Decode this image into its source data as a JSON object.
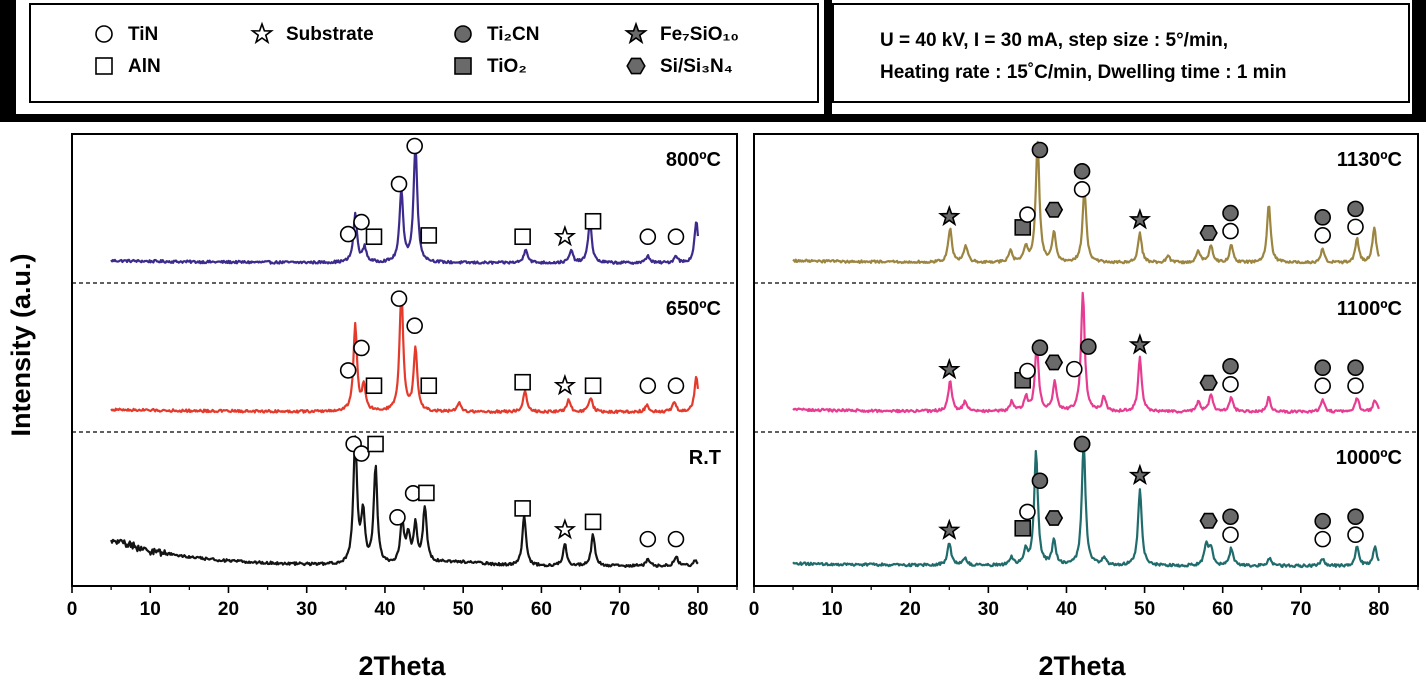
{
  "legend": {
    "items": [
      {
        "marker": "circle-open",
        "label": "TiN",
        "sub": ""
      },
      {
        "marker": "square-open",
        "label": "AlN",
        "sub": ""
      },
      {
        "marker": "star-open",
        "label": "Substrate",
        "sub": ""
      },
      {
        "marker": "circle-filled",
        "label": "Ti₂CN",
        "sub": ""
      },
      {
        "marker": "square-filled",
        "label": "TiO₂",
        "sub": ""
      },
      {
        "marker": "star-filled",
        "label": "Fe₇SiO₁₀",
        "sub": ""
      },
      {
        "marker": "hexagon-filled",
        "label": "Si/Si₃N₄",
        "sub": ""
      }
    ]
  },
  "conditions": {
    "line1": "U = 40 kV, I = 30 mA, step size : 5°/min,",
    "line2": "Heating rate : 15˚C/min, Dwelling time : 1 min"
  },
  "colors": {
    "800": "#3d2a8c",
    "650": "#e33a2c",
    "RT": "#141414",
    "1130": "#9c8540",
    "1100": "#e63d93",
    "1000": "#206c6c",
    "marker_fill": "#6a6a6a"
  },
  "chart_data": [
    {
      "type": "line",
      "panel": "left",
      "xlabel": "2Theta",
      "ylabel": "Intensity (a.u.)",
      "xlim": [
        0,
        85
      ],
      "xticks": [
        "0",
        "10",
        "20",
        "30",
        "40",
        "50",
        "60",
        "70",
        "80"
      ],
      "series": [
        {
          "name": "800ºC",
          "color_key": "800",
          "peaks": [
            [
              36.2,
              0.4
            ],
            [
              37.4,
              0.12
            ],
            [
              42.1,
              0.6
            ],
            [
              43.9,
              1.0
            ],
            [
              58.0,
              0.12
            ],
            [
              63.8,
              0.1
            ],
            [
              66.2,
              0.35
            ],
            [
              73.6,
              0.06
            ],
            [
              77.2,
              0.06
            ],
            [
              79.8,
              0.35
            ]
          ],
          "markers": [
            [
              "circle-open",
              35.3
            ],
            [
              "circle-open",
              37.0
            ],
            [
              "square-open",
              38.6
            ],
            [
              "circle-open",
              41.8
            ],
            [
              "circle-open",
              43.8
            ],
            [
              "square-open",
              45.6
            ],
            [
              "square-open",
              57.6
            ],
            [
              "star-open",
              63.0
            ],
            [
              "square-open",
              66.6
            ],
            [
              "circle-open",
              73.6
            ],
            [
              "circle-open",
              77.2
            ]
          ]
        },
        {
          "name": "650ºC",
          "color_key": "650",
          "peaks": [
            [
              36.2,
              0.72
            ],
            [
              37.3,
              0.2
            ],
            [
              42.1,
              1.0
            ],
            [
              43.9,
              0.52
            ],
            [
              49.5,
              0.07
            ],
            [
              57.9,
              0.18
            ],
            [
              63.5,
              0.1
            ],
            [
              66.3,
              0.12
            ],
            [
              73.5,
              0.06
            ],
            [
              77.0,
              0.08
            ],
            [
              79.8,
              0.3
            ]
          ],
          "markers": [
            [
              "circle-open",
              35.3
            ],
            [
              "circle-open",
              37.0
            ],
            [
              "square-open",
              38.6
            ],
            [
              "circle-open",
              41.8
            ],
            [
              "circle-open",
              43.8
            ],
            [
              "square-open",
              45.6
            ],
            [
              "square-open",
              57.6
            ],
            [
              "star-open",
              63.0
            ],
            [
              "square-open",
              66.6
            ],
            [
              "circle-open",
              73.6
            ],
            [
              "circle-open",
              77.2
            ]
          ]
        },
        {
          "name": "R.T",
          "color_key": "RT",
          "peaks": [
            [
              36.2,
              1.0
            ],
            [
              37.2,
              0.4
            ],
            [
              38.8,
              0.78
            ],
            [
              42.2,
              0.35
            ],
            [
              43.0,
              0.22
            ],
            [
              43.9,
              0.3
            ],
            [
              45.1,
              0.45
            ],
            [
              57.8,
              0.4
            ],
            [
              63.0,
              0.18
            ],
            [
              66.6,
              0.25
            ],
            [
              73.6,
              0.05
            ],
            [
              77.2,
              0.08
            ],
            [
              79.7,
              0.05
            ]
          ],
          "markers": [
            [
              "circle-open",
              36.0
            ],
            [
              "circle-open",
              37.0
            ],
            [
              "square-open",
              38.8
            ],
            [
              "circle-open",
              41.6
            ],
            [
              "circle-open",
              43.6
            ],
            [
              "square-open",
              45.3
            ],
            [
              "square-open",
              57.6
            ],
            [
              "star-open",
              63.0
            ],
            [
              "square-open",
              66.6
            ],
            [
              "circle-open",
              73.6
            ],
            [
              "circle-open",
              77.2
            ]
          ]
        }
      ]
    },
    {
      "type": "line",
      "panel": "right",
      "xlabel": "2Theta",
      "ylabel": "Intensity (a.u.)",
      "xlim": [
        0,
        85
      ],
      "xticks": [
        "0",
        "10",
        "20",
        "30",
        "40",
        "50",
        "60",
        "70",
        "80"
      ],
      "series": [
        {
          "name": "1130ºC",
          "color_key": "1130",
          "peaks": [
            [
              25.1,
              0.28
            ],
            [
              27.1,
              0.14
            ],
            [
              32.8,
              0.1
            ],
            [
              34.8,
              0.12
            ],
            [
              36.3,
              1.0
            ],
            [
              38.4,
              0.25
            ],
            [
              42.3,
              0.62
            ],
            [
              49.4,
              0.25
            ],
            [
              53.0,
              0.06
            ],
            [
              56.9,
              0.1
            ],
            [
              58.5,
              0.15
            ],
            [
              61.1,
              0.15
            ],
            [
              65.9,
              0.5
            ],
            [
              72.8,
              0.12
            ],
            [
              77.2,
              0.2
            ],
            [
              79.4,
              0.3
            ]
          ],
          "markers": [
            [
              "star-filled",
              25.0
            ],
            [
              "square-filled",
              34.4
            ],
            [
              "circle-open",
              35.0
            ],
            [
              "circle-filled",
              36.6
            ],
            [
              "hexagon-filled",
              38.4
            ],
            [
              "circle-open",
              42.0
            ],
            [
              "circle-filled",
              42.0
            ],
            [
              "star-filled",
              49.4
            ],
            [
              "hexagon-filled",
              58.2
            ],
            [
              "circle-open",
              61.0
            ],
            [
              "circle-filled",
              61.0
            ],
            [
              "circle-open",
              72.8
            ],
            [
              "circle-filled",
              72.8
            ],
            [
              "circle-open",
              77.0
            ],
            [
              "circle-filled",
              77.0
            ]
          ]
        },
        {
          "name": "1100ºC",
          "color_key": "1100",
          "peaks": [
            [
              25.1,
              0.25
            ],
            [
              27.0,
              0.08
            ],
            [
              33.0,
              0.08
            ],
            [
              34.8,
              0.12
            ],
            [
              36.2,
              0.56
            ],
            [
              38.5,
              0.25
            ],
            [
              42.1,
              1.0
            ],
            [
              44.8,
              0.12
            ],
            [
              49.4,
              0.45
            ],
            [
              56.9,
              0.08
            ],
            [
              58.5,
              0.15
            ],
            [
              61.1,
              0.12
            ],
            [
              65.9,
              0.12
            ],
            [
              72.8,
              0.1
            ],
            [
              77.2,
              0.12
            ],
            [
              79.5,
              0.1
            ]
          ],
          "markers": [
            [
              "star-filled",
              25.0
            ],
            [
              "square-filled",
              34.4
            ],
            [
              "circle-open",
              35.0
            ],
            [
              "circle-filled",
              36.6
            ],
            [
              "hexagon-filled",
              38.4
            ],
            [
              "circle-open",
              41.0
            ],
            [
              "circle-filled",
              42.8
            ],
            [
              "star-filled",
              49.4
            ],
            [
              "hexagon-filled",
              58.2
            ],
            [
              "circle-open",
              61.0
            ],
            [
              "circle-filled",
              61.0
            ],
            [
              "circle-open",
              72.8
            ],
            [
              "circle-filled",
              72.8
            ],
            [
              "circle-open",
              77.0
            ],
            [
              "circle-filled",
              77.0
            ]
          ]
        },
        {
          "name": "1000ºC",
          "color_key": "1000",
          "peaks": [
            [
              25.0,
              0.18
            ],
            [
              27.0,
              0.06
            ],
            [
              33.0,
              0.06
            ],
            [
              34.8,
              0.12
            ],
            [
              36.1,
              0.92
            ],
            [
              38.4,
              0.2
            ],
            [
              42.2,
              1.0
            ],
            [
              44.8,
              0.06
            ],
            [
              49.4,
              0.62
            ],
            [
              57.9,
              0.18
            ],
            [
              58.5,
              0.14
            ],
            [
              61.1,
              0.14
            ],
            [
              66.0,
              0.06
            ],
            [
              72.8,
              0.06
            ],
            [
              77.2,
              0.16
            ],
            [
              79.5,
              0.16
            ]
          ],
          "markers": [
            [
              "star-filled",
              25.0
            ],
            [
              "square-filled",
              34.4
            ],
            [
              "circle-open",
              35.0
            ],
            [
              "circle-filled",
              36.6
            ],
            [
              "hexagon-filled",
              38.4
            ],
            [
              "circle-open",
              42.0
            ],
            [
              "circle-filled",
              42.0
            ],
            [
              "star-filled",
              49.4
            ],
            [
              "hexagon-filled",
              58.2
            ],
            [
              "circle-open",
              61.0
            ],
            [
              "circle-filled",
              61.0
            ],
            [
              "circle-open",
              72.8
            ],
            [
              "circle-filled",
              72.8
            ],
            [
              "circle-open",
              77.0
            ],
            [
              "circle-filled",
              77.0
            ]
          ]
        }
      ]
    }
  ]
}
